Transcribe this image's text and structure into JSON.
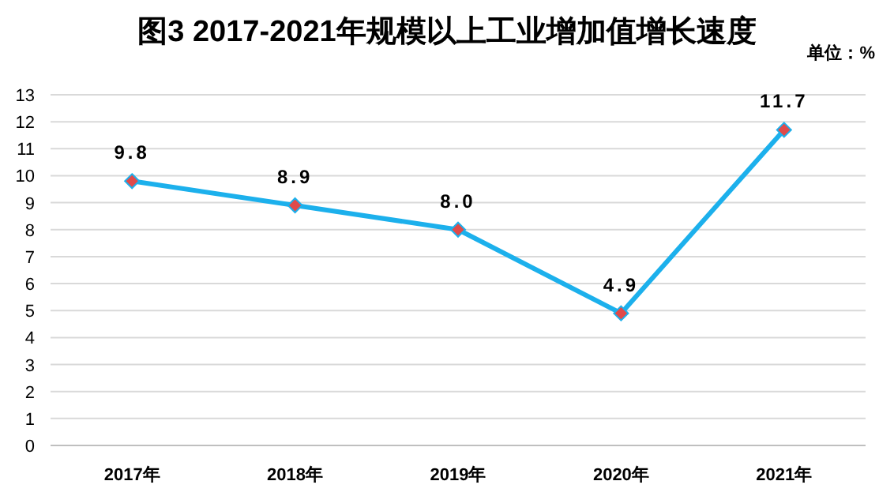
{
  "chart_data": {
    "type": "line",
    "title": "图3  2017-2021年规模以上工业增加值增长速度",
    "annotations": [
      "单位：%"
    ],
    "categories": [
      "2017年",
      "2018年",
      "2019年",
      "2020年",
      "2021年"
    ],
    "series": [
      {
        "color": "#1cb0ec",
        "values": [
          9.8,
          8.9,
          8.0,
          4.9,
          11.7
        ],
        "value_labels": [
          "9.8",
          "8.9",
          "8.0",
          "4.9",
          "11.7"
        ]
      }
    ],
    "ylim": [
      0,
      13
    ],
    "yticks": [
      0,
      1,
      2,
      3,
      4,
      5,
      6,
      7,
      8,
      9,
      10,
      11,
      12,
      13
    ],
    "grid": "y",
    "marker": "diamond",
    "line_style": "solid"
  }
}
